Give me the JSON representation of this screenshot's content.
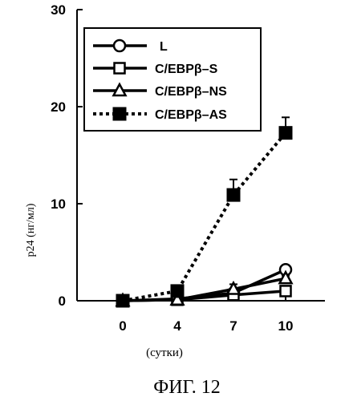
{
  "chart_data": {
    "type": "line",
    "title": "",
    "xlabel": "(сутки)",
    "ylabel": "p24 (нг/мл)",
    "x": [
      0,
      4,
      7,
      10
    ],
    "x_tick_labels": [
      "0",
      "4",
      "7",
      "10"
    ],
    "y_tick_labels": [
      "0",
      "10",
      "20",
      "30"
    ],
    "ylim": [
      0,
      30
    ],
    "grid": false,
    "legend_position": "top-left",
    "series": [
      {
        "name": "L",
        "marker": "open-circle",
        "line_style": "solid",
        "values": [
          0,
          0.2,
          0.8,
          3.2
        ],
        "error": [
          0,
          0,
          0.3,
          0.3
        ]
      },
      {
        "name": "C/EBPβ–S",
        "marker": "open-square",
        "line_style": "solid",
        "values": [
          0,
          0.1,
          0.6,
          1.0
        ],
        "error": [
          0,
          0,
          0.3,
          0.2
        ]
      },
      {
        "name": "C/EBPβ–NS",
        "marker": "open-triangle",
        "line_style": "solid",
        "values": [
          0,
          0.1,
          1.2,
          2.3
        ],
        "error": [
          0,
          0,
          0.5,
          0.3
        ]
      },
      {
        "name": "C/EBPβ–AS",
        "marker": "filled-square",
        "line_style": "dotted",
        "values": [
          0,
          1.0,
          10.9,
          17.3
        ],
        "error": [
          0,
          0.3,
          1.6,
          1.6
        ]
      }
    ]
  },
  "caption": "ФИГ. 12"
}
